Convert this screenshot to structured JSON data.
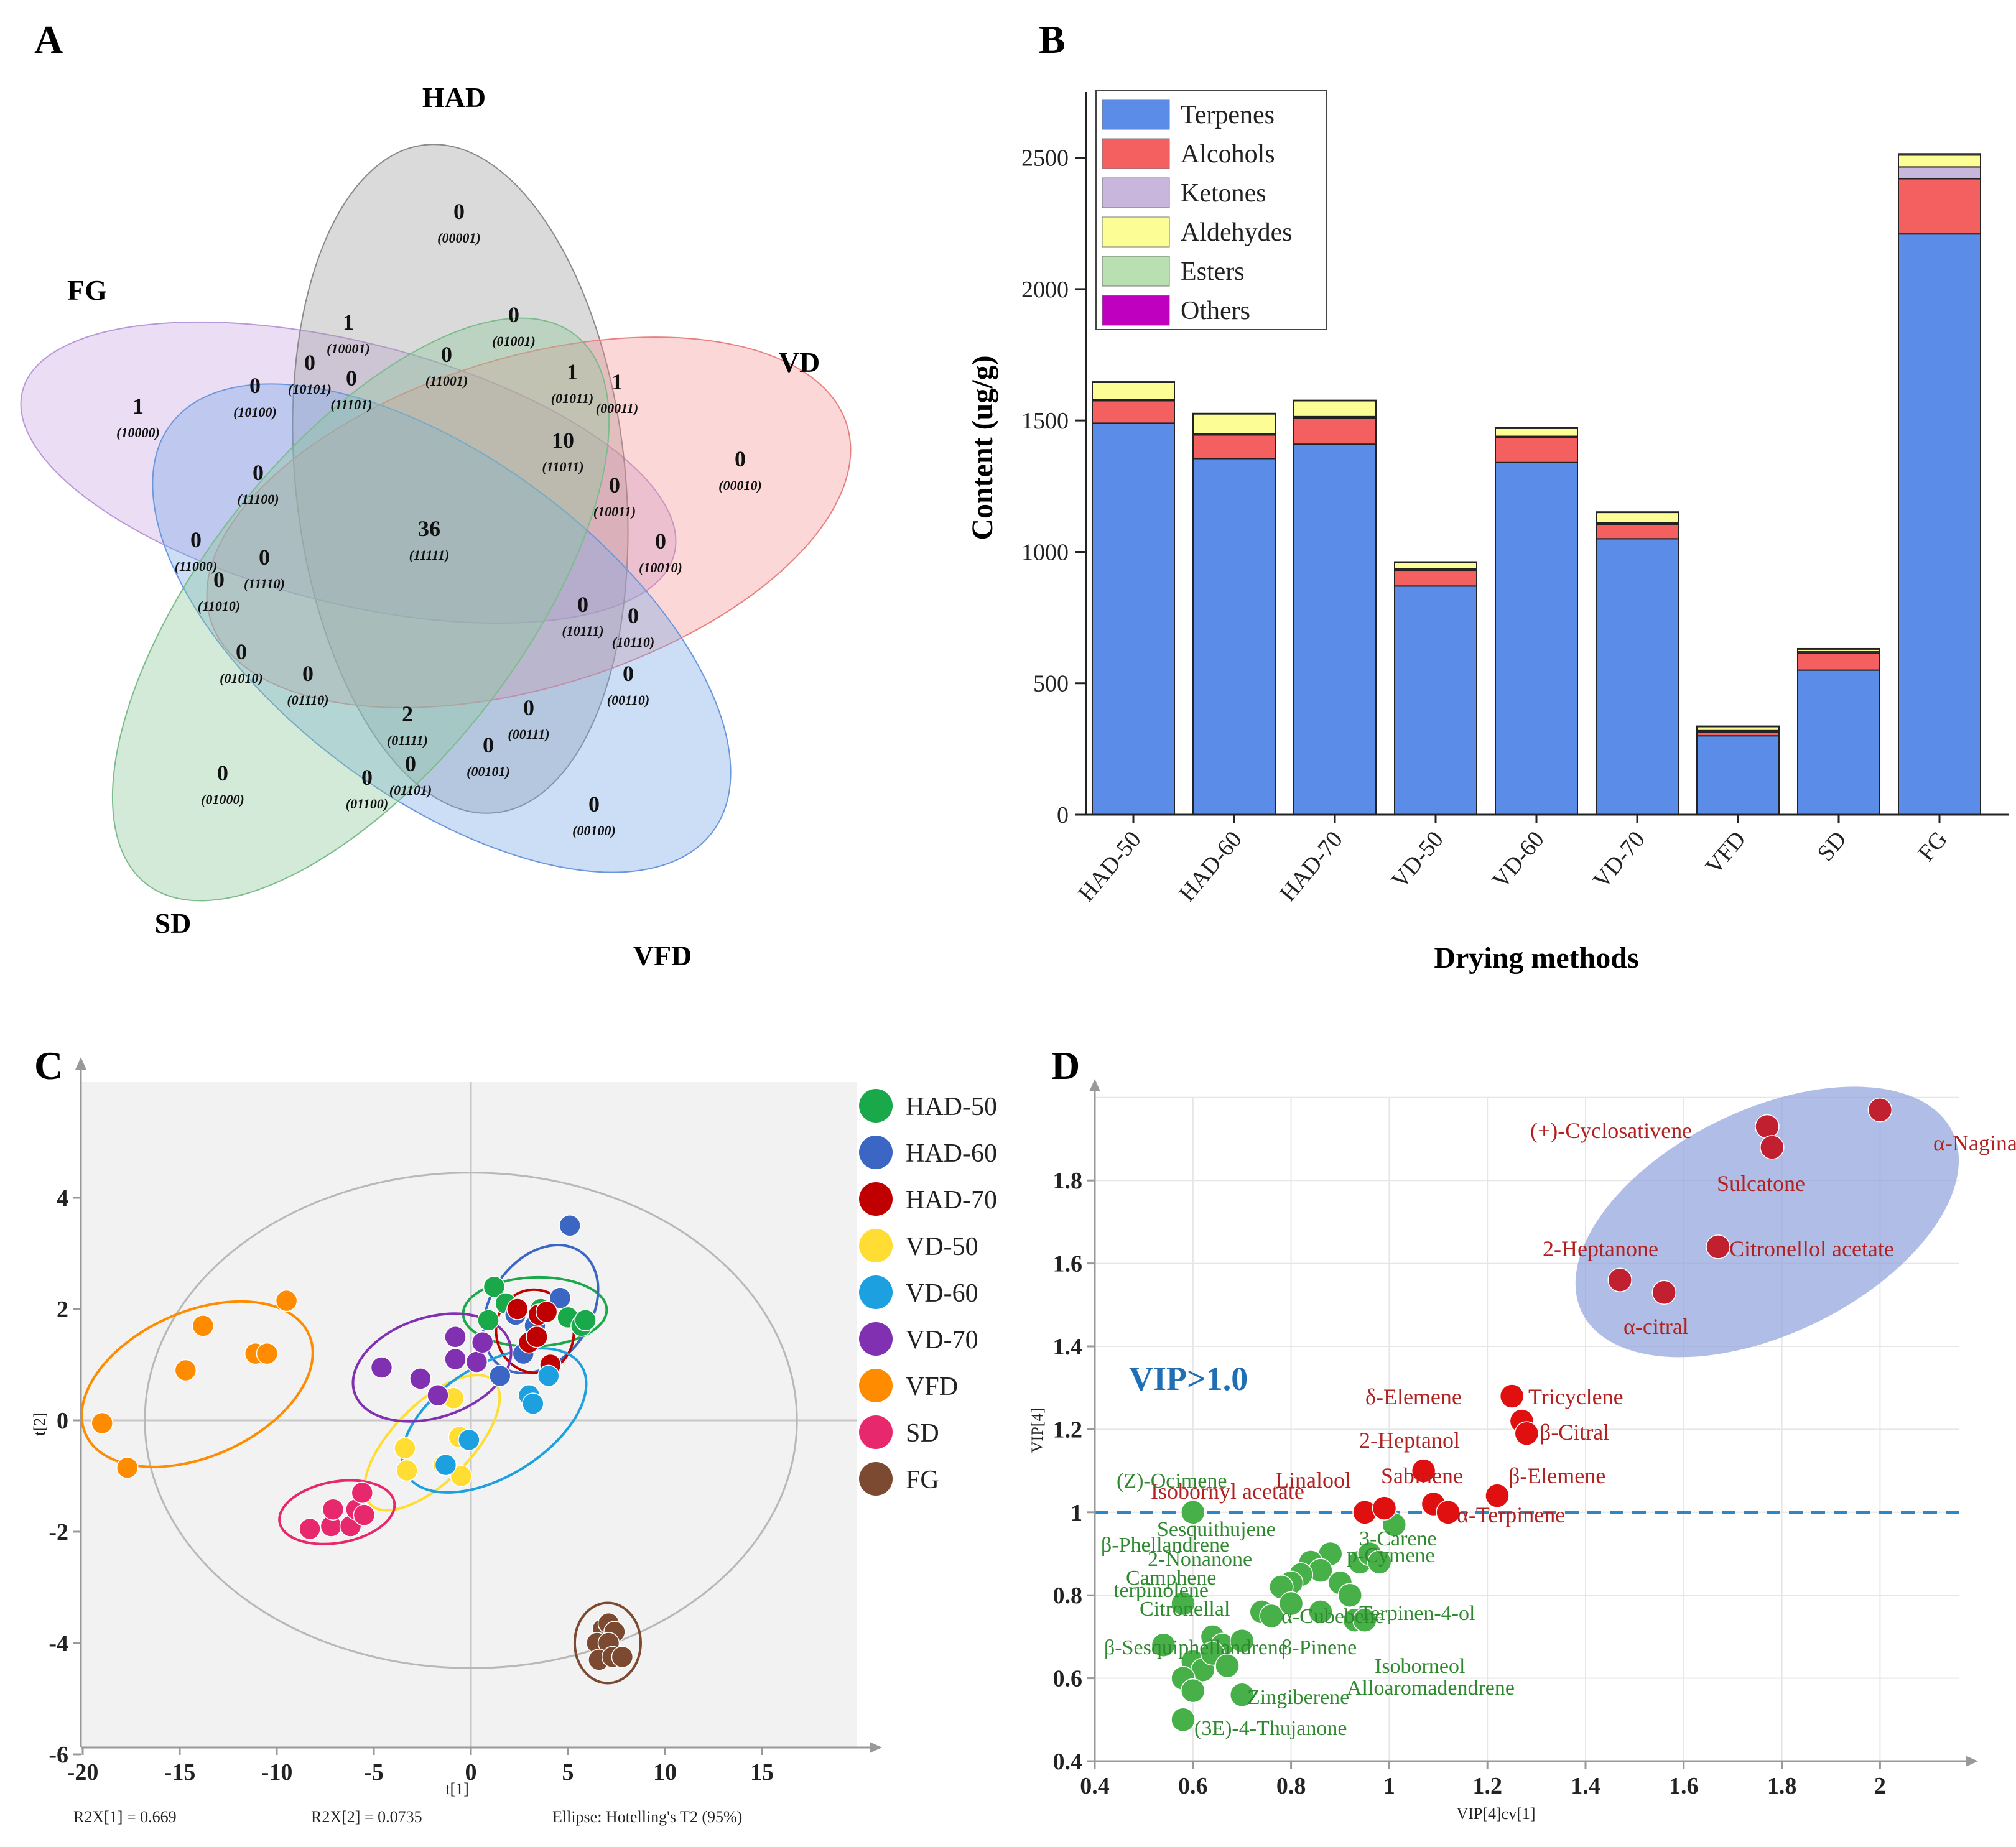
{
  "panel_labels": [
    "A",
    "B",
    "C",
    "D"
  ],
  "chart_data": [
    {
      "type": "venn",
      "panel": "A",
      "sets": [
        "HAD",
        "VD",
        "VFD",
        "SD",
        "FG"
      ],
      "set_colors": [
        "#9e9e9e",
        "#f28b8b",
        "#7aa7e8",
        "#8cc79a",
        "#c9a6e3"
      ],
      "regions": [
        {
          "code": "00001",
          "count": 0
        },
        {
          "code": "10001",
          "count": 1
        },
        {
          "code": "01001",
          "count": 0
        },
        {
          "code": "10101",
          "count": 0
        },
        {
          "code": "11101",
          "count": 0
        },
        {
          "code": "11001",
          "count": 0
        },
        {
          "code": "01011",
          "count": 1
        },
        {
          "code": "00011",
          "count": 1
        },
        {
          "code": "10000",
          "count": 1
        },
        {
          "code": "10100",
          "count": 0
        },
        {
          "code": "00010",
          "count": 0
        },
        {
          "code": "11011",
          "count": 10
        },
        {
          "code": "11100",
          "count": 0
        },
        {
          "code": "10011",
          "count": 0
        },
        {
          "code": "11111",
          "count": 36
        },
        {
          "code": "10010",
          "count": 0
        },
        {
          "code": "11000",
          "count": 0
        },
        {
          "code": "11110",
          "count": 0
        },
        {
          "code": "11010",
          "count": 0
        },
        {
          "code": "10111",
          "count": 0
        },
        {
          "code": "10110",
          "count": 0
        },
        {
          "code": "01010",
          "count": 0
        },
        {
          "code": "01110",
          "count": 0
        },
        {
          "code": "00110",
          "count": 0
        },
        {
          "code": "01111",
          "count": 2
        },
        {
          "code": "00111",
          "count": 0
        },
        {
          "code": "00101",
          "count": 0
        },
        {
          "code": "01101",
          "count": 0
        },
        {
          "code": "01100",
          "count": 0
        },
        {
          "code": "01000",
          "count": 0
        },
        {
          "code": "00100",
          "count": 0
        }
      ]
    },
    {
      "type": "bar",
      "stacked": true,
      "panel": "B",
      "categories": [
        "HAD-50",
        "HAD-60",
        "HAD-70",
        "VD-50",
        "VD-60",
        "VD-70",
        "VFD",
        "SD",
        "FG"
      ],
      "series": [
        {
          "name": "Terpenes",
          "color": "#5b8de8",
          "values": [
            1490,
            1355,
            1410,
            870,
            1340,
            1050,
            300,
            550,
            2210
          ]
        },
        {
          "name": "Alcohols",
          "color": "#f46060",
          "values": [
            85,
            90,
            100,
            60,
            95,
            55,
            15,
            65,
            210
          ]
        },
        {
          "name": "Ketones",
          "color": "#c8b6dc",
          "values": [
            5,
            5,
            5,
            5,
            5,
            5,
            5,
            5,
            45
          ]
        },
        {
          "name": "Aldehydes",
          "color": "#fdfd96",
          "values": [
            65,
            75,
            60,
            25,
            30,
            40,
            15,
            10,
            45
          ]
        },
        {
          "name": "Esters",
          "color": "#b8e0b0",
          "values": [
            2,
            2,
            2,
            2,
            2,
            2,
            2,
            2,
            5
          ]
        },
        {
          "name": "Others",
          "color": "#bf00bf",
          "values": [
            0,
            0,
            0,
            0,
            0,
            0,
            0,
            0,
            0
          ]
        }
      ],
      "ylim": [
        0,
        2750
      ],
      "yticks": [
        0,
        500,
        1000,
        1500,
        2000,
        2500
      ],
      "ylabel": "Content (ug/g)",
      "xlabel": "Drying methods"
    },
    {
      "type": "scatter",
      "panel": "C",
      "xlabel": "t[1]",
      "ylabel": "t[2]",
      "xlim": [
        -20,
        20
      ],
      "ylim": [
        -6,
        6
      ],
      "xticks": [
        -20,
        -15,
        -10,
        -5,
        0,
        5,
        10,
        15
      ],
      "yticks": [
        -6,
        -4,
        -2,
        0,
        2,
        4
      ],
      "footer": [
        "R2X[1] = 0.669",
        "R2X[2] = 0.0735",
        "Ellipse: Hotelling's T2 (95%)"
      ],
      "hotelling": {
        "rx": 16.8,
        "ry": 4.45
      },
      "groups": [
        {
          "name": "HAD-50",
          "color": "#19a84a",
          "points": [
            [
              1.2,
              2.4
            ],
            [
              0.9,
              1.8
            ],
            [
              1.8,
              2.1
            ],
            [
              3.6,
              2.0
            ],
            [
              5.0,
              1.85
            ],
            [
              5.7,
              1.7
            ],
            [
              5.9,
              1.8
            ]
          ],
          "ellipse": {
            "cx": 3.3,
            "cy": 1.95,
            "rx": 3.7,
            "ry": 0.62,
            "angle": -2
          }
        },
        {
          "name": "HAD-60",
          "color": "#3c66c4",
          "points": [
            [
              5.1,
              3.5
            ],
            [
              4.6,
              2.2
            ],
            [
              2.3,
              1.9
            ],
            [
              3.3,
              1.7
            ],
            [
              1.5,
              0.8
            ],
            [
              2.7,
              1.2
            ]
          ],
          "ellipse": {
            "cx": 3.6,
            "cy": 2.0,
            "rx": 3.6,
            "ry": 0.9,
            "angle": -55
          }
        },
        {
          "name": "HAD-70",
          "color": "#c00000",
          "points": [
            [
              2.4,
              2.0
            ],
            [
              3.5,
              1.9
            ],
            [
              3.9,
              1.95
            ],
            [
              3.0,
              1.4
            ],
            [
              3.4,
              1.5
            ],
            [
              4.1,
              1.0
            ]
          ],
          "ellipse": {
            "cx": 3.3,
            "cy": 1.6,
            "rx": 2.0,
            "ry": 0.75,
            "angle": -10
          }
        },
        {
          "name": "VD-50",
          "color": "#ffdd33",
          "points": [
            [
              -3.4,
              -0.5
            ],
            [
              -3.3,
              -0.9
            ],
            [
              -1.4,
              -0.8
            ],
            [
              -0.6,
              -0.3
            ],
            [
              -0.5,
              -1.0
            ],
            [
              -0.9,
              0.4
            ]
          ],
          "ellipse": {
            "cx": -2.0,
            "cy": -0.4,
            "rx": 4.5,
            "ry": 0.7,
            "angle": -45
          }
        },
        {
          "name": "VD-60",
          "color": "#1ca0e0",
          "points": [
            [
              3.0,
              0.45
            ],
            [
              3.2,
              0.3
            ],
            [
              4.0,
              0.8
            ],
            [
              -1.3,
              -0.8
            ],
            [
              -0.1,
              -0.35
            ]
          ],
          "ellipse": {
            "cx": 1.2,
            "cy": 0.0,
            "rx": 5.3,
            "ry": 1.0,
            "angle": -32
          }
        },
        {
          "name": "VD-70",
          "color": "#8030b0",
          "points": [
            [
              -4.6,
              0.95
            ],
            [
              -2.6,
              0.75
            ],
            [
              -1.7,
              0.45
            ],
            [
              -0.8,
              1.1
            ],
            [
              0.3,
              1.05
            ],
            [
              -0.8,
              1.5
            ],
            [
              0.6,
              1.4
            ]
          ],
          "ellipse": {
            "cx": -2.0,
            "cy": 0.95,
            "rx": 4.2,
            "ry": 0.9,
            "angle": -18
          }
        },
        {
          "name": "VFD",
          "color": "#ff8c00",
          "points": [
            [
              -19.0,
              -0.05
            ],
            [
              -17.7,
              -0.85
            ],
            [
              -14.7,
              0.9
            ],
            [
              -13.8,
              1.7
            ],
            [
              -11.1,
              1.2
            ],
            [
              -10.5,
              1.2
            ],
            [
              -9.5,
              2.15
            ]
          ],
          "ellipse": {
            "cx": -14.1,
            "cy": 0.65,
            "rx": 6.3,
            "ry": 1.3,
            "angle": -24
          }
        },
        {
          "name": "SD",
          "color": "#e8286c",
          "points": [
            [
              -8.3,
              -1.95
            ],
            [
              -7.2,
              -1.9
            ],
            [
              -7.1,
              -1.6
            ],
            [
              -6.2,
              -1.9
            ],
            [
              -5.9,
              -1.6
            ],
            [
              -5.5,
              -1.7
            ],
            [
              -5.6,
              -1.3
            ]
          ],
          "ellipse": {
            "cx": -6.9,
            "cy": -1.65,
            "rx": 3.0,
            "ry": 0.55,
            "angle": -10
          }
        },
        {
          "name": "FG",
          "color": "#7b4a30",
          "points": [
            [
              6.8,
              -3.75
            ],
            [
              7.1,
              -3.65
            ],
            [
              7.4,
              -3.8
            ],
            [
              6.5,
              -4.0
            ],
            [
              7.1,
              -4.0
            ],
            [
              6.6,
              -4.3
            ],
            [
              7.3,
              -4.25
            ],
            [
              7.8,
              -4.25
            ]
          ],
          "ellipse": {
            "cx": 7.05,
            "cy": -4.0,
            "rx": 1.7,
            "ry": 0.72,
            "angle": 0
          }
        }
      ]
    },
    {
      "type": "scatter",
      "panel": "D",
      "xlabel": "VIP[4]cv[1]",
      "ylabel": "VIP[4]",
      "xlim": [
        0.4,
        2.2
      ],
      "ylim": [
        0.4,
        2.0
      ],
      "xticks": [
        0.4,
        0.6,
        0.8,
        1,
        1.2,
        1.4,
        1.6,
        1.8,
        2
      ],
      "yticks": [
        0.4,
        0.6,
        0.8,
        1,
        1.2,
        1.4,
        1.6,
        1.8
      ],
      "threshold": 1.0,
      "threshold_label": "VIP>1.0",
      "highlight_ellipse": {
        "cx": 1.77,
        "cy": 1.7,
        "rx": 0.42,
        "ry": 0.27
      },
      "red_points": [
        {
          "name": "(+)-Cyclosativene",
          "x": 1.77,
          "y": 1.93
        },
        {
          "name": "α-Naginatene",
          "x": 2.0,
          "y": 1.97
        },
        {
          "name": "Sulcatone",
          "x": 1.78,
          "y": 1.88
        },
        {
          "name": "2-Heptanone",
          "x": 1.47,
          "y": 1.56
        },
        {
          "name": "Citronellol acetate",
          "x": 1.67,
          "y": 1.64
        },
        {
          "name": "α-citral",
          "x": 1.56,
          "y": 1.53
        },
        {
          "name": "δ-Elemene",
          "x": 1.25,
          "y": 1.28
        },
        {
          "name": "Tricyclene",
          "x": 1.27,
          "y": 1.22
        },
        {
          "name": "β-Citral",
          "x": 1.28,
          "y": 1.19
        },
        {
          "name": "2-Heptanol",
          "x": 1.07,
          "y": 1.1
        },
        {
          "name": "Sabinene",
          "x": 1.09,
          "y": 1.02
        },
        {
          "name": "β-Elemene",
          "x": 1.22,
          "y": 1.04
        },
        {
          "name": "α-Terpinene",
          "x": 1.12,
          "y": 1.0
        },
        {
          "name": "Isobornyl acetate",
          "x": 0.95,
          "y": 1.0
        },
        {
          "name": "Linalool",
          "x": 0.99,
          "y": 1.01
        }
      ],
      "green_points": [
        [
          0.6,
          1.0
        ],
        [
          1.01,
          0.97
        ],
        [
          0.94,
          0.88
        ],
        [
          0.96,
          0.9
        ],
        [
          0.98,
          0.88
        ],
        [
          0.88,
          0.9
        ],
        [
          0.84,
          0.88
        ],
        [
          0.86,
          0.86
        ],
        [
          0.82,
          0.85
        ],
        [
          0.8,
          0.83
        ],
        [
          0.78,
          0.82
        ],
        [
          0.9,
          0.83
        ],
        [
          0.92,
          0.8
        ],
        [
          0.74,
          0.76
        ],
        [
          0.76,
          0.75
        ],
        [
          0.8,
          0.78
        ],
        [
          0.86,
          0.76
        ],
        [
          0.93,
          0.74
        ],
        [
          0.95,
          0.74
        ],
        [
          0.58,
          0.78
        ],
        [
          0.54,
          0.68
        ],
        [
          0.64,
          0.7
        ],
        [
          0.66,
          0.68
        ],
        [
          0.7,
          0.69
        ],
        [
          0.6,
          0.64
        ],
        [
          0.62,
          0.62
        ],
        [
          0.64,
          0.66
        ],
        [
          0.67,
          0.63
        ],
        [
          0.58,
          0.6
        ],
        [
          0.6,
          0.57
        ],
        [
          0.7,
          0.56
        ],
        [
          0.58,
          0.5
        ]
      ],
      "green_labels": [
        "(Z)-Ocimene",
        "Sesquithujene",
        "β-Phellandrene",
        "2-Nonanone",
        "Camphene",
        "terpinolene",
        "Citronellal",
        "p-Cymene",
        "3-Carene",
        "α-Cubebene",
        "Terpinen-4-ol",
        "β-Pinene",
        "Isoborneol",
        "Zingiberene",
        "β-Sesquiphellandrene",
        "Alloaromadendrene",
        "(3E)-4-Thujanone"
      ]
    }
  ]
}
